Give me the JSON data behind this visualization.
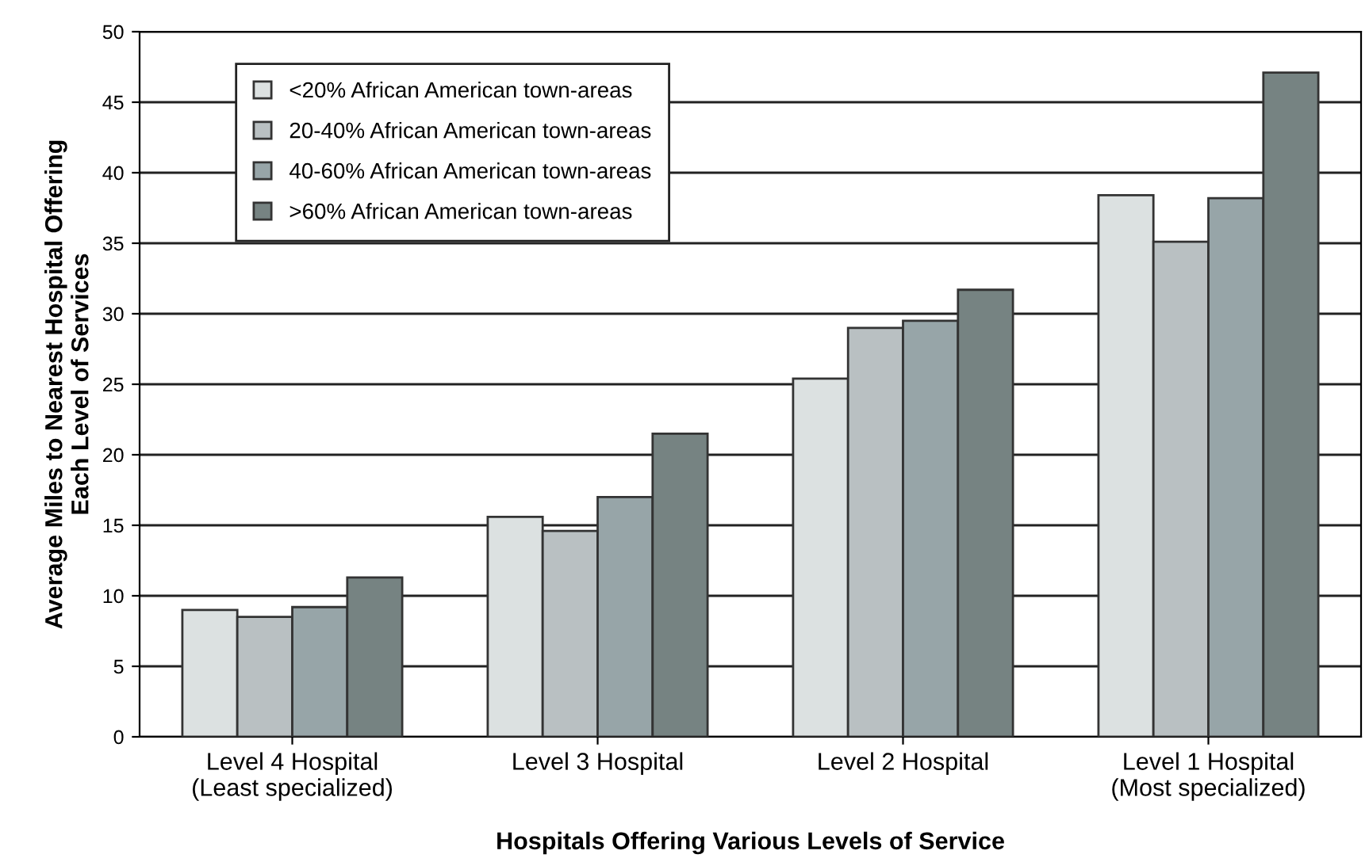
{
  "chart_data": {
    "type": "bar",
    "categories": [
      "Level 4 Hospital\n(Least specialized)",
      "Level 3 Hospital",
      "Level 2 Hospital",
      "Level 1 Hospital\n(Most specialized)"
    ],
    "series": [
      {
        "name": "<20% African American town-areas",
        "color": "#dce1e1",
        "values": [
          9.0,
          15.6,
          25.4,
          38.4
        ]
      },
      {
        "name": "20-40% African American town-areas",
        "color": "#b9c0c2",
        "values": [
          8.5,
          14.6,
          29.0,
          35.1
        ]
      },
      {
        "name": "40-60% African American town-areas",
        "color": "#97a5a8",
        "values": [
          9.2,
          17.0,
          29.5,
          38.2
        ]
      },
      {
        "name": ">60% African American town-areas",
        "color": "#768382",
        "values": [
          11.3,
          21.5,
          31.7,
          47.1
        ]
      }
    ],
    "xlabel": "Hospitals Offering Various Levels of Service",
    "ylabel": "Average Miles to Nearest Hospital Offering\nEach Level of Services",
    "ylim": [
      0,
      50
    ],
    "yticks": [
      0,
      5,
      10,
      15,
      20,
      25,
      30,
      35,
      40,
      45,
      50
    ],
    "grid": "y",
    "legend": "top left"
  }
}
